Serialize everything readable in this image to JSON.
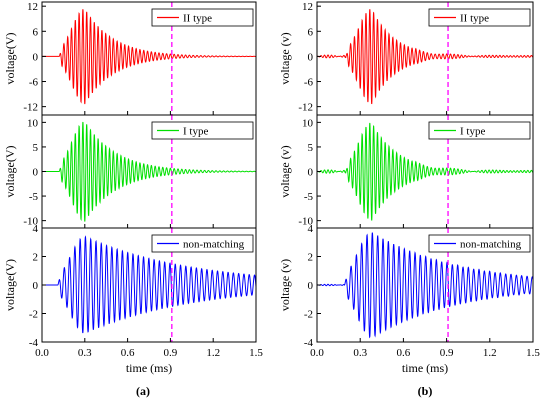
{
  "chart_data": [
    {
      "type": "line",
      "caption": "(a)",
      "xlabel": "time (ms)",
      "xlim": [
        0.0,
        1.5
      ],
      "x_ticks": [
        "0.0",
        "0.3",
        "0.6",
        "0.9",
        "1.2",
        "1.5"
      ],
      "marker_line": {
        "x": 0.91,
        "color": "#ff00ff",
        "style": "dashed"
      },
      "panels": [
        {
          "ylabel": "voltage(V)",
          "ylim": [
            -14,
            13
          ],
          "y_ticks": [
            "12",
            "6",
            "0",
            "-6",
            "-12"
          ],
          "y_tick_values": [
            12,
            6,
            0,
            -6,
            -12
          ],
          "series": [
            {
              "name": "II type",
              "color": "#ff0000",
              "signal": {
                "onset_ms": 0.12,
                "peak_ms": 0.3,
                "amplitude": 11.4,
                "rise_ms": 0.09,
                "decay_ms": 0.2,
                "frequency_khz": 37.5,
                "baseline_noise": 0.0
              }
            }
          ]
        },
        {
          "ylabel": "voltage(V)",
          "ylim": [
            -11.5,
            11.5
          ],
          "y_ticks": [
            "10",
            "5",
            "0",
            "-5",
            "-10"
          ],
          "y_tick_values": [
            10,
            5,
            0,
            -5,
            -10
          ],
          "series": [
            {
              "name": "I type",
              "color": "#00e000",
              "signal": {
                "onset_ms": 0.12,
                "peak_ms": 0.3,
                "amplitude": 10.2,
                "rise_ms": 0.09,
                "decay_ms": 0.22,
                "frequency_khz": 37.5,
                "baseline_noise": 0.0
              }
            }
          ]
        },
        {
          "ylabel": "voltage(V)",
          "ylim": [
            -4,
            4
          ],
          "y_ticks": [
            "4",
            "2",
            "0",
            "-2",
            "-4"
          ],
          "y_tick_values": [
            4,
            2,
            0,
            -2,
            -4
          ],
          "series": [
            {
              "name": "non-matching",
              "color": "#0000ff",
              "signal": {
                "onset_ms": 0.11,
                "peak_ms": 0.3,
                "amplitude": 3.4,
                "rise_ms": 0.1,
                "decay_ms": 0.75,
                "frequency_khz": 27.0,
                "baseline_noise": 0.0
              }
            }
          ]
        }
      ]
    },
    {
      "type": "line",
      "caption": "(b)",
      "xlabel": "time (ms)",
      "xlim": [
        0.0,
        1.5
      ],
      "x_ticks": [
        "0.0",
        "0.3",
        "0.6",
        "0.9",
        "1.2",
        "1.5"
      ],
      "marker_line": {
        "x": 0.91,
        "color": "#ff00ff",
        "style": "dashed"
      },
      "panels": [
        {
          "ylabel": "voltage (v)",
          "ylim": [
            -14,
            13
          ],
          "y_ticks": [
            "12",
            "6",
            "0",
            "-6",
            "-12"
          ],
          "y_tick_values": [
            12,
            6,
            0,
            -6,
            -12
          ],
          "series": [
            {
              "name": "II type",
              "color": "#ff0000",
              "signal": {
                "onset_ms": 0.2,
                "peak_ms": 0.38,
                "amplitude": 11.4,
                "rise_ms": 0.09,
                "decay_ms": 0.16,
                "frequency_khz": 37.5,
                "baseline_noise": 0.35
              }
            }
          ]
        },
        {
          "ylabel": "voltage (v)",
          "ylim": [
            -11.5,
            11.5
          ],
          "y_ticks": [
            "10",
            "5",
            "0",
            "-5",
            "-10"
          ],
          "y_tick_values": [
            10,
            5,
            0,
            -5,
            -10
          ],
          "series": [
            {
              "name": "I type",
              "color": "#00e000",
              "signal": {
                "onset_ms": 0.2,
                "peak_ms": 0.38,
                "amplitude": 10.0,
                "rise_ms": 0.09,
                "decay_ms": 0.18,
                "frequency_khz": 37.5,
                "baseline_noise": 0.35
              }
            }
          ]
        },
        {
          "ylabel": "voltage (v)",
          "ylim": [
            -4,
            4
          ],
          "y_ticks": [
            "4",
            "2",
            "0",
            "-2",
            "-4"
          ],
          "y_tick_values": [
            4,
            2,
            0,
            -2,
            -4
          ],
          "series": [
            {
              "name": "non-matching",
              "color": "#0000ff",
              "signal": {
                "onset_ms": 0.19,
                "peak_ms": 0.38,
                "amplitude": 3.7,
                "rise_ms": 0.1,
                "decay_ms": 0.6,
                "frequency_khz": 27.0,
                "baseline_noise": 0.05
              }
            }
          ]
        }
      ]
    }
  ]
}
